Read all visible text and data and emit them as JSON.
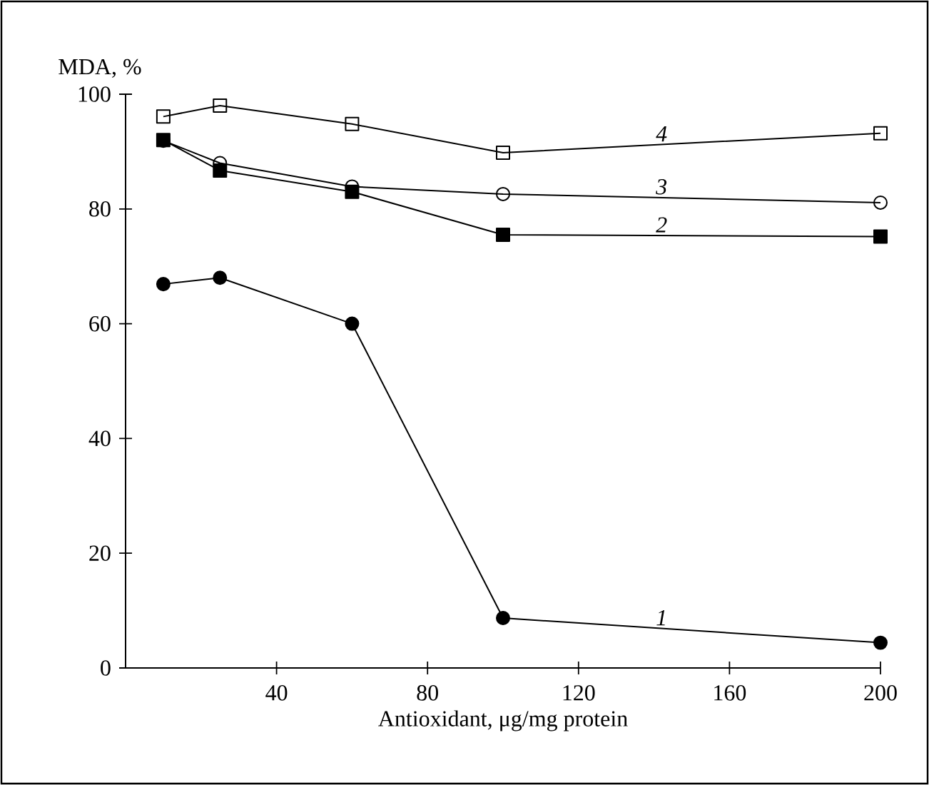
{
  "chart_data": {
    "type": "line",
    "xlabel": "Antioxidant, μg/mg protein",
    "ylabel": "MDA, %",
    "x": [
      10,
      25,
      60,
      100,
      200
    ],
    "xlim": [
      0,
      200
    ],
    "xticks": [
      40,
      80,
      120,
      160,
      200
    ],
    "ylim": [
      0,
      100
    ],
    "yticks": [
      0,
      20,
      40,
      60,
      80,
      100
    ],
    "grid": false,
    "legend": false,
    "line_style": "solid",
    "series": [
      {
        "name": "1",
        "color": "#000000",
        "marker": "circle",
        "values": [
          66.9,
          68,
          60,
          8.7,
          4.4
        ]
      },
      {
        "name": "2",
        "color": "#000000",
        "marker": "square",
        "values": [
          92,
          86.7,
          83,
          75.5,
          75.2
        ]
      },
      {
        "name": "3",
        "color": "#000000",
        "marker": "circle-open",
        "values": [
          91.9,
          88,
          83.9,
          82.6,
          81.1
        ]
      },
      {
        "name": "4",
        "color": "#000000",
        "marker": "square-open",
        "values": [
          96.1,
          98,
          94.8,
          89.8,
          93.2
        ]
      }
    ]
  }
}
